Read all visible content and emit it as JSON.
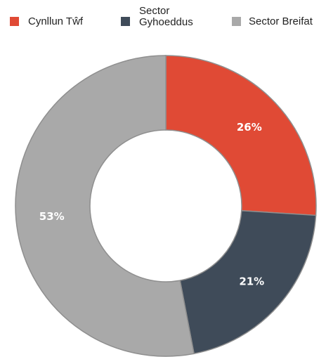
{
  "chart_data": {
    "type": "pie",
    "donut": true,
    "legend_position": "top",
    "series": [
      {
        "name": "Cynllun Tŵf",
        "value": 26,
        "label": "26%",
        "color": "#e04a35"
      },
      {
        "name": "Sector Gyhoeddus",
        "name_lines": [
          "Sector",
          "Gyhoeddus"
        ],
        "value": 21,
        "label": "21%",
        "color": "#3f4b59"
      },
      {
        "name": "Sector Breifat",
        "value": 53,
        "label": "53%",
        "color": "#a9a9a9"
      }
    ]
  }
}
